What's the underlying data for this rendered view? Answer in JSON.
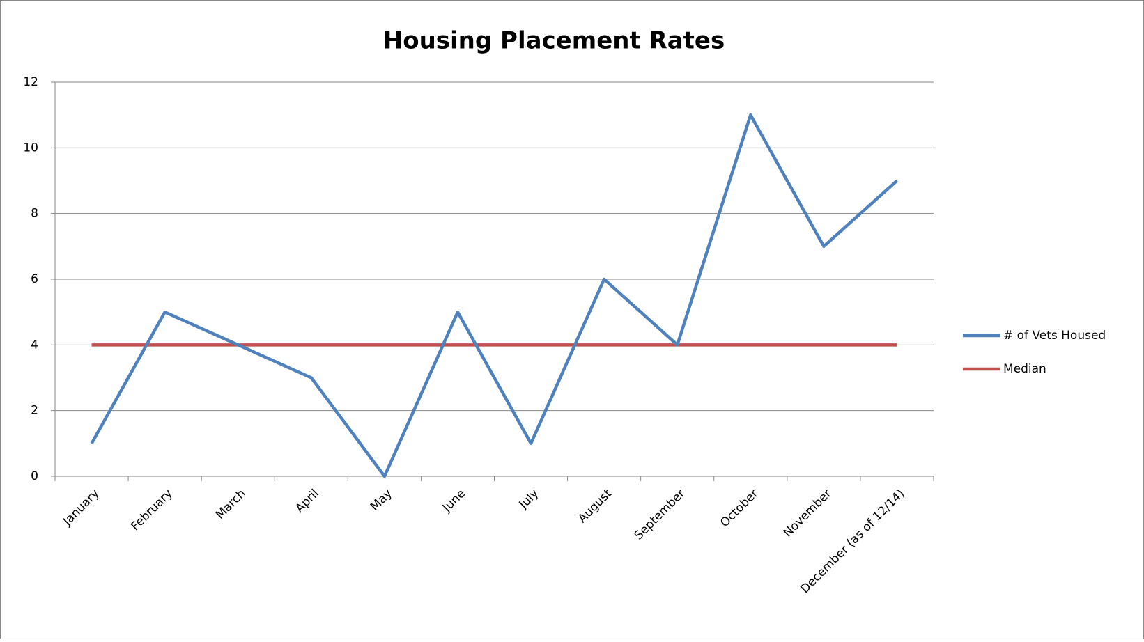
{
  "chart_data": {
    "type": "line",
    "title": "Housing Placement Rates",
    "categories": [
      "January",
      "February",
      "March",
      "April",
      "May",
      "June",
      "July",
      "August",
      "September",
      "October",
      "November",
      "December (as of 12/14)"
    ],
    "series": [
      {
        "name": "# of Vets Housed",
        "color": "#4f81bd",
        "values": [
          1,
          5,
          4,
          3,
          0,
          5,
          1,
          6,
          4,
          11,
          7,
          9
        ]
      },
      {
        "name": "Median",
        "color": "#c0504d",
        "values": [
          4,
          4,
          4,
          4,
          4,
          4,
          4,
          4,
          4,
          4,
          4,
          4
        ]
      }
    ],
    "ylim": [
      0,
      12
    ],
    "yticks": [
      0,
      2,
      4,
      6,
      8,
      10,
      12
    ],
    "grid": true,
    "legend": "right"
  }
}
